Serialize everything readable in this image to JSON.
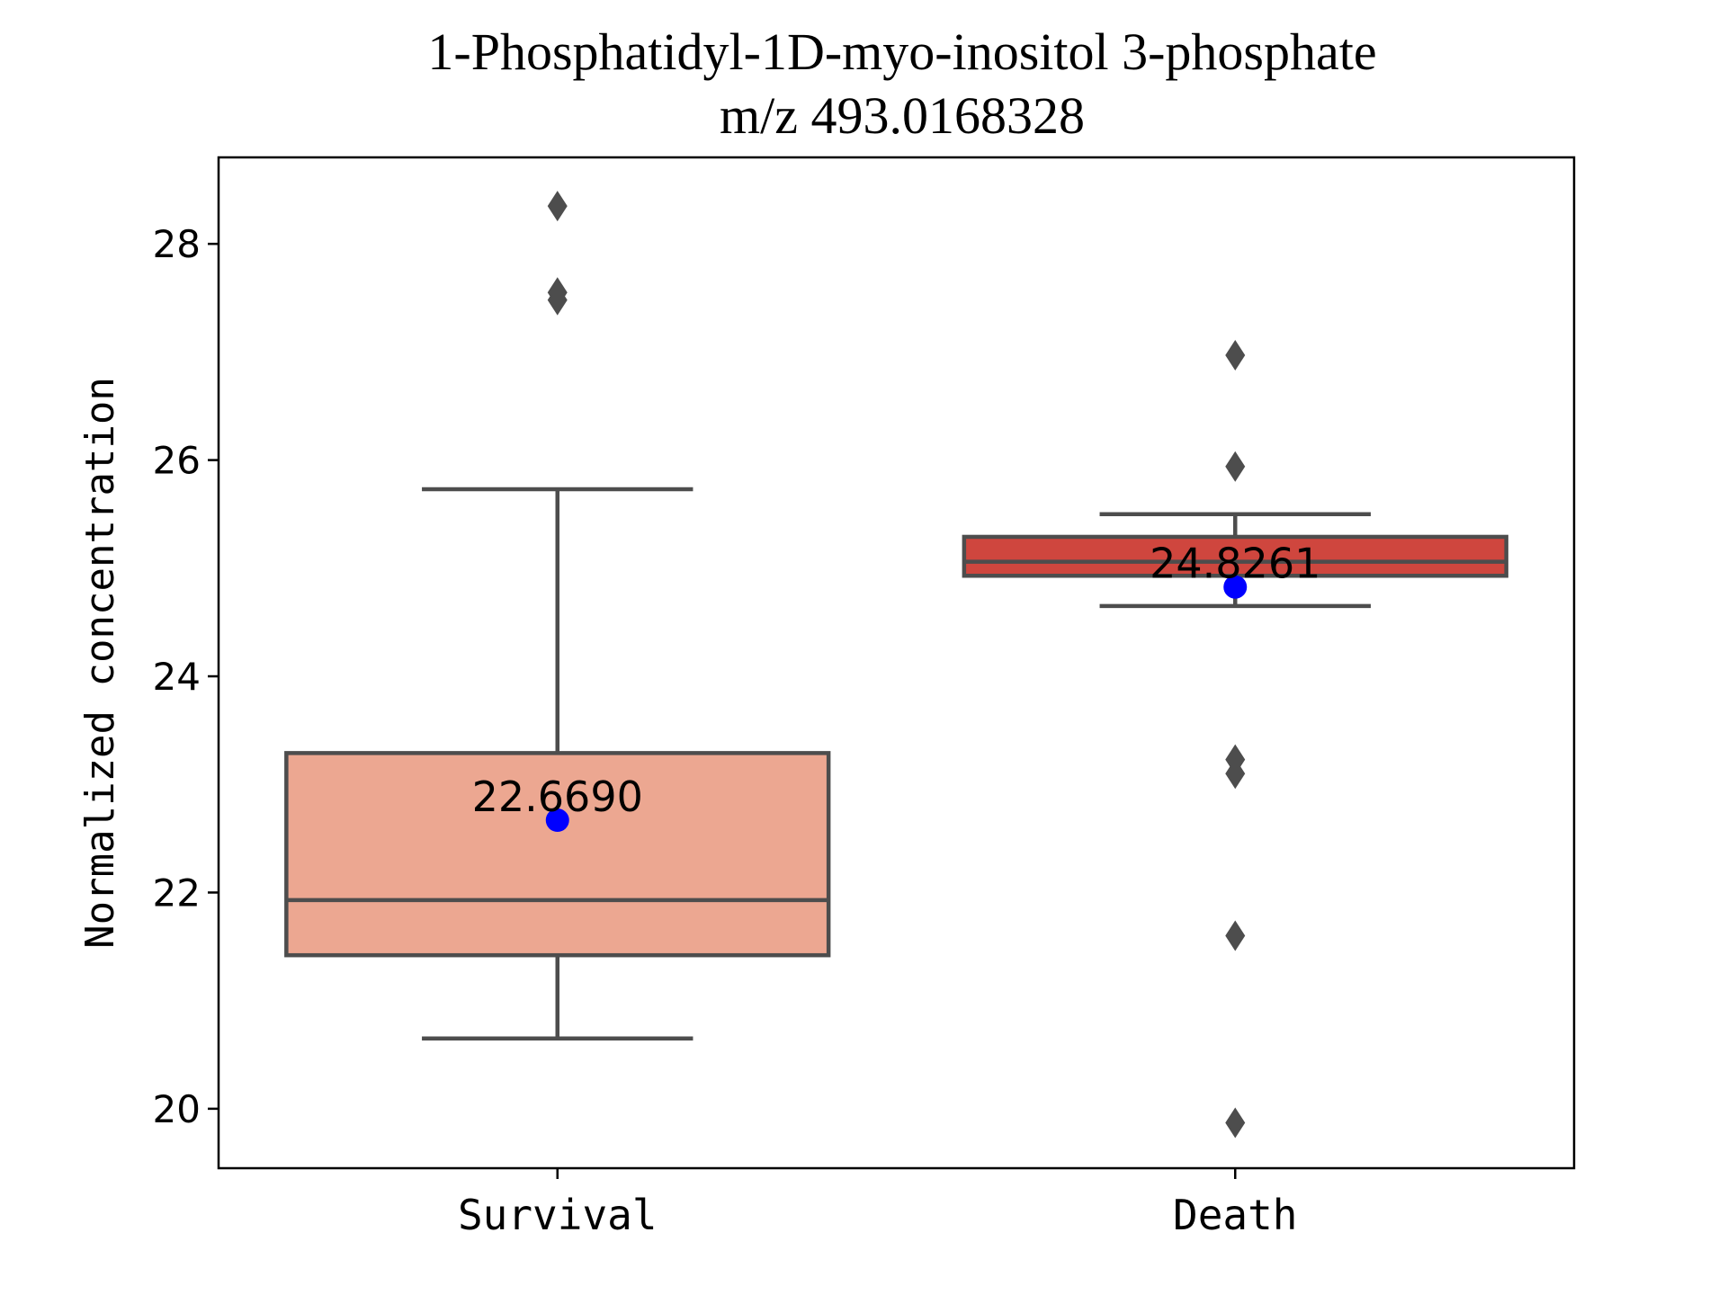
{
  "chart_data": {
    "type": "box",
    "title_line1": "1-Phosphatidyl-1D-myo-inositol 3-phosphate",
    "title_line2": "m/z  493.0168328",
    "xlabel": "",
    "ylabel": "Normalized concentration",
    "ylim": [
      19.45,
      28.8
    ],
    "yticks": [
      20,
      22,
      24,
      26,
      28
    ],
    "grid": false,
    "categories": [
      "Survival",
      "Death"
    ],
    "boxes": [
      {
        "category": "Survival",
        "color": "#eca791",
        "whisker_low": 20.65,
        "q1": 21.42,
        "median": 21.93,
        "q3": 23.29,
        "whisker_high": 25.73,
        "mean": 22.669,
        "mean_label": "22.6690",
        "outliers": [
          28.35,
          27.55,
          27.48
        ]
      },
      {
        "category": "Death",
        "color": "#cf463e",
        "whisker_low": 24.65,
        "q1": 24.93,
        "median": 25.06,
        "q3": 25.29,
        "whisker_high": 25.5,
        "mean": 24.8261,
        "mean_label": "24.8261",
        "outliers": [
          26.97,
          25.94,
          23.23,
          23.1,
          21.6,
          19.87
        ]
      }
    ],
    "mean_marker_color": "#0000ff",
    "box_edge_color": "#4d4d4d"
  }
}
